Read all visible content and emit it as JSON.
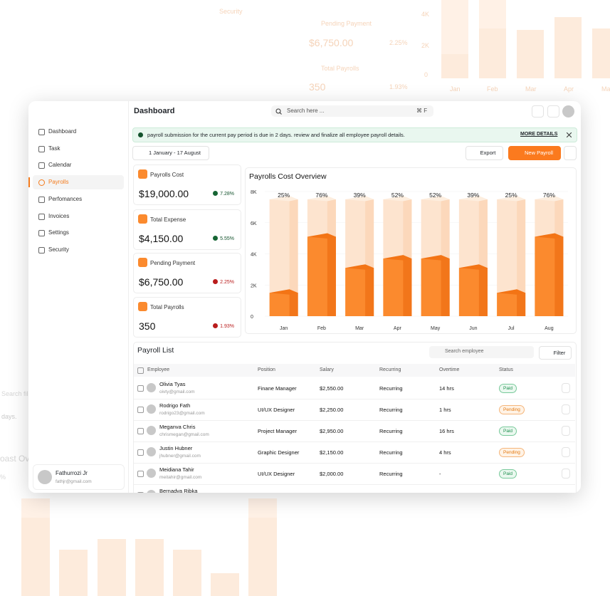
{
  "background": {
    "labels": [
      "Security",
      "Pending Payment",
      "$6,750.00",
      "2.25%",
      "Total Payrolls",
      "350",
      "1.93%",
      "4K",
      "2K",
      "0",
      "Jan",
      "Feb",
      "Mar",
      "Apr",
      "May",
      "Search fil",
      "days.",
      "oast Ove",
      "%"
    ]
  },
  "sidebar": {
    "items": [
      "Dashboard",
      "Task",
      "Calendar",
      "Payrolls",
      "Perfomances",
      "Invoices",
      "Settings",
      "Security"
    ],
    "active": 3,
    "user": {
      "name": "Fathurrozi Jr",
      "email": "fathjr@gmail.com"
    }
  },
  "header": {
    "title": "Dashboard",
    "search_placeholder": "Search here ...",
    "shortcut": "⌘ F"
  },
  "alert": {
    "text": "payroll submission for the current pay period is due in 2 days. review and finalize all employee payroll details.",
    "link": "MORE DETAILS"
  },
  "toolbar": {
    "date_range": "1 January - 17 August",
    "export": "Export",
    "new": "New Payroll"
  },
  "stats": [
    {
      "label": "Payrolls Cost",
      "value": "$19,000.00",
      "change": "7.28%",
      "trend": "up"
    },
    {
      "label": "Total Expense",
      "value": "$4,150.00",
      "change": "5.55%",
      "trend": "up"
    },
    {
      "label": "Pending Payment",
      "value": "$6,750.00",
      "change": "2.25%",
      "trend": "down"
    },
    {
      "label": "Total Payrolls",
      "value": "350",
      "change": "1.93%",
      "trend": "down"
    }
  ],
  "chart": {
    "type": "bar",
    "title": "Payrolls Cost Overview",
    "categories": [
      "Jan",
      "Feb",
      "Mar",
      "Apr",
      "May",
      "Jun",
      "Jul",
      "Aug"
    ],
    "series": [
      {
        "color": "#fde4cf",
        "values": [
          7500,
          7500,
          7500,
          7500,
          7500,
          7500,
          7500,
          7500
        ]
      },
      {
        "color": "#fb8a2e",
        "values": [
          1500,
          5100,
          3100,
          3700,
          3700,
          3100,
          1500,
          5100
        ]
      }
    ],
    "annotations": [
      "25%",
      "76%",
      "39%",
      "52%",
      "52%",
      "39%",
      "25%",
      "76%"
    ],
    "ylim": [
      0,
      8000
    ],
    "yticks": [
      0,
      {
        "value": 2000,
        "label": "2K"
      },
      {
        "value": 4000,
        "label": "4K"
      },
      {
        "value": 6000,
        "label": "6K"
      },
      {
        "value": 8000,
        "label": "8K"
      }
    ],
    "grid": true
  },
  "table": {
    "title": "Payroll List",
    "search_placeholder": "Search employee",
    "filter": "Filter",
    "columns": [
      "Employee",
      "Position",
      "Salary",
      "Recurring",
      "Overtime",
      "Status"
    ],
    "rows": [
      [
        "Olivia Tyas",
        "oivty@gmail.com",
        "Finane Manager",
        "$2,550.00",
        "Recurring",
        "14 hrs",
        "Paid"
      ],
      [
        "Rodrigo Fath",
        "rodrigo23@gmail.com",
        "UI/UX Designer",
        "$2,250.00",
        "Recurring",
        "1 hrs",
        "Pending"
      ],
      [
        "Meganva Chris",
        "chrismegan@gmail.com",
        "Project Manager",
        "$2,950.00",
        "Recurring",
        "16 hrs",
        "Paid"
      ],
      [
        "Justin Hubner",
        "jhubner@gmail.com",
        "Graphic Designer",
        "$2,150.00",
        "Recurring",
        "4 hrs",
        "Pending"
      ],
      [
        "Meidiana Tahir",
        "meitahir@gmail.com",
        "UI/UX Designer",
        "$2,000.00",
        "Recurring",
        "-",
        "Paid"
      ],
      [
        "Bernadya Ribka"
      ]
    ]
  }
}
